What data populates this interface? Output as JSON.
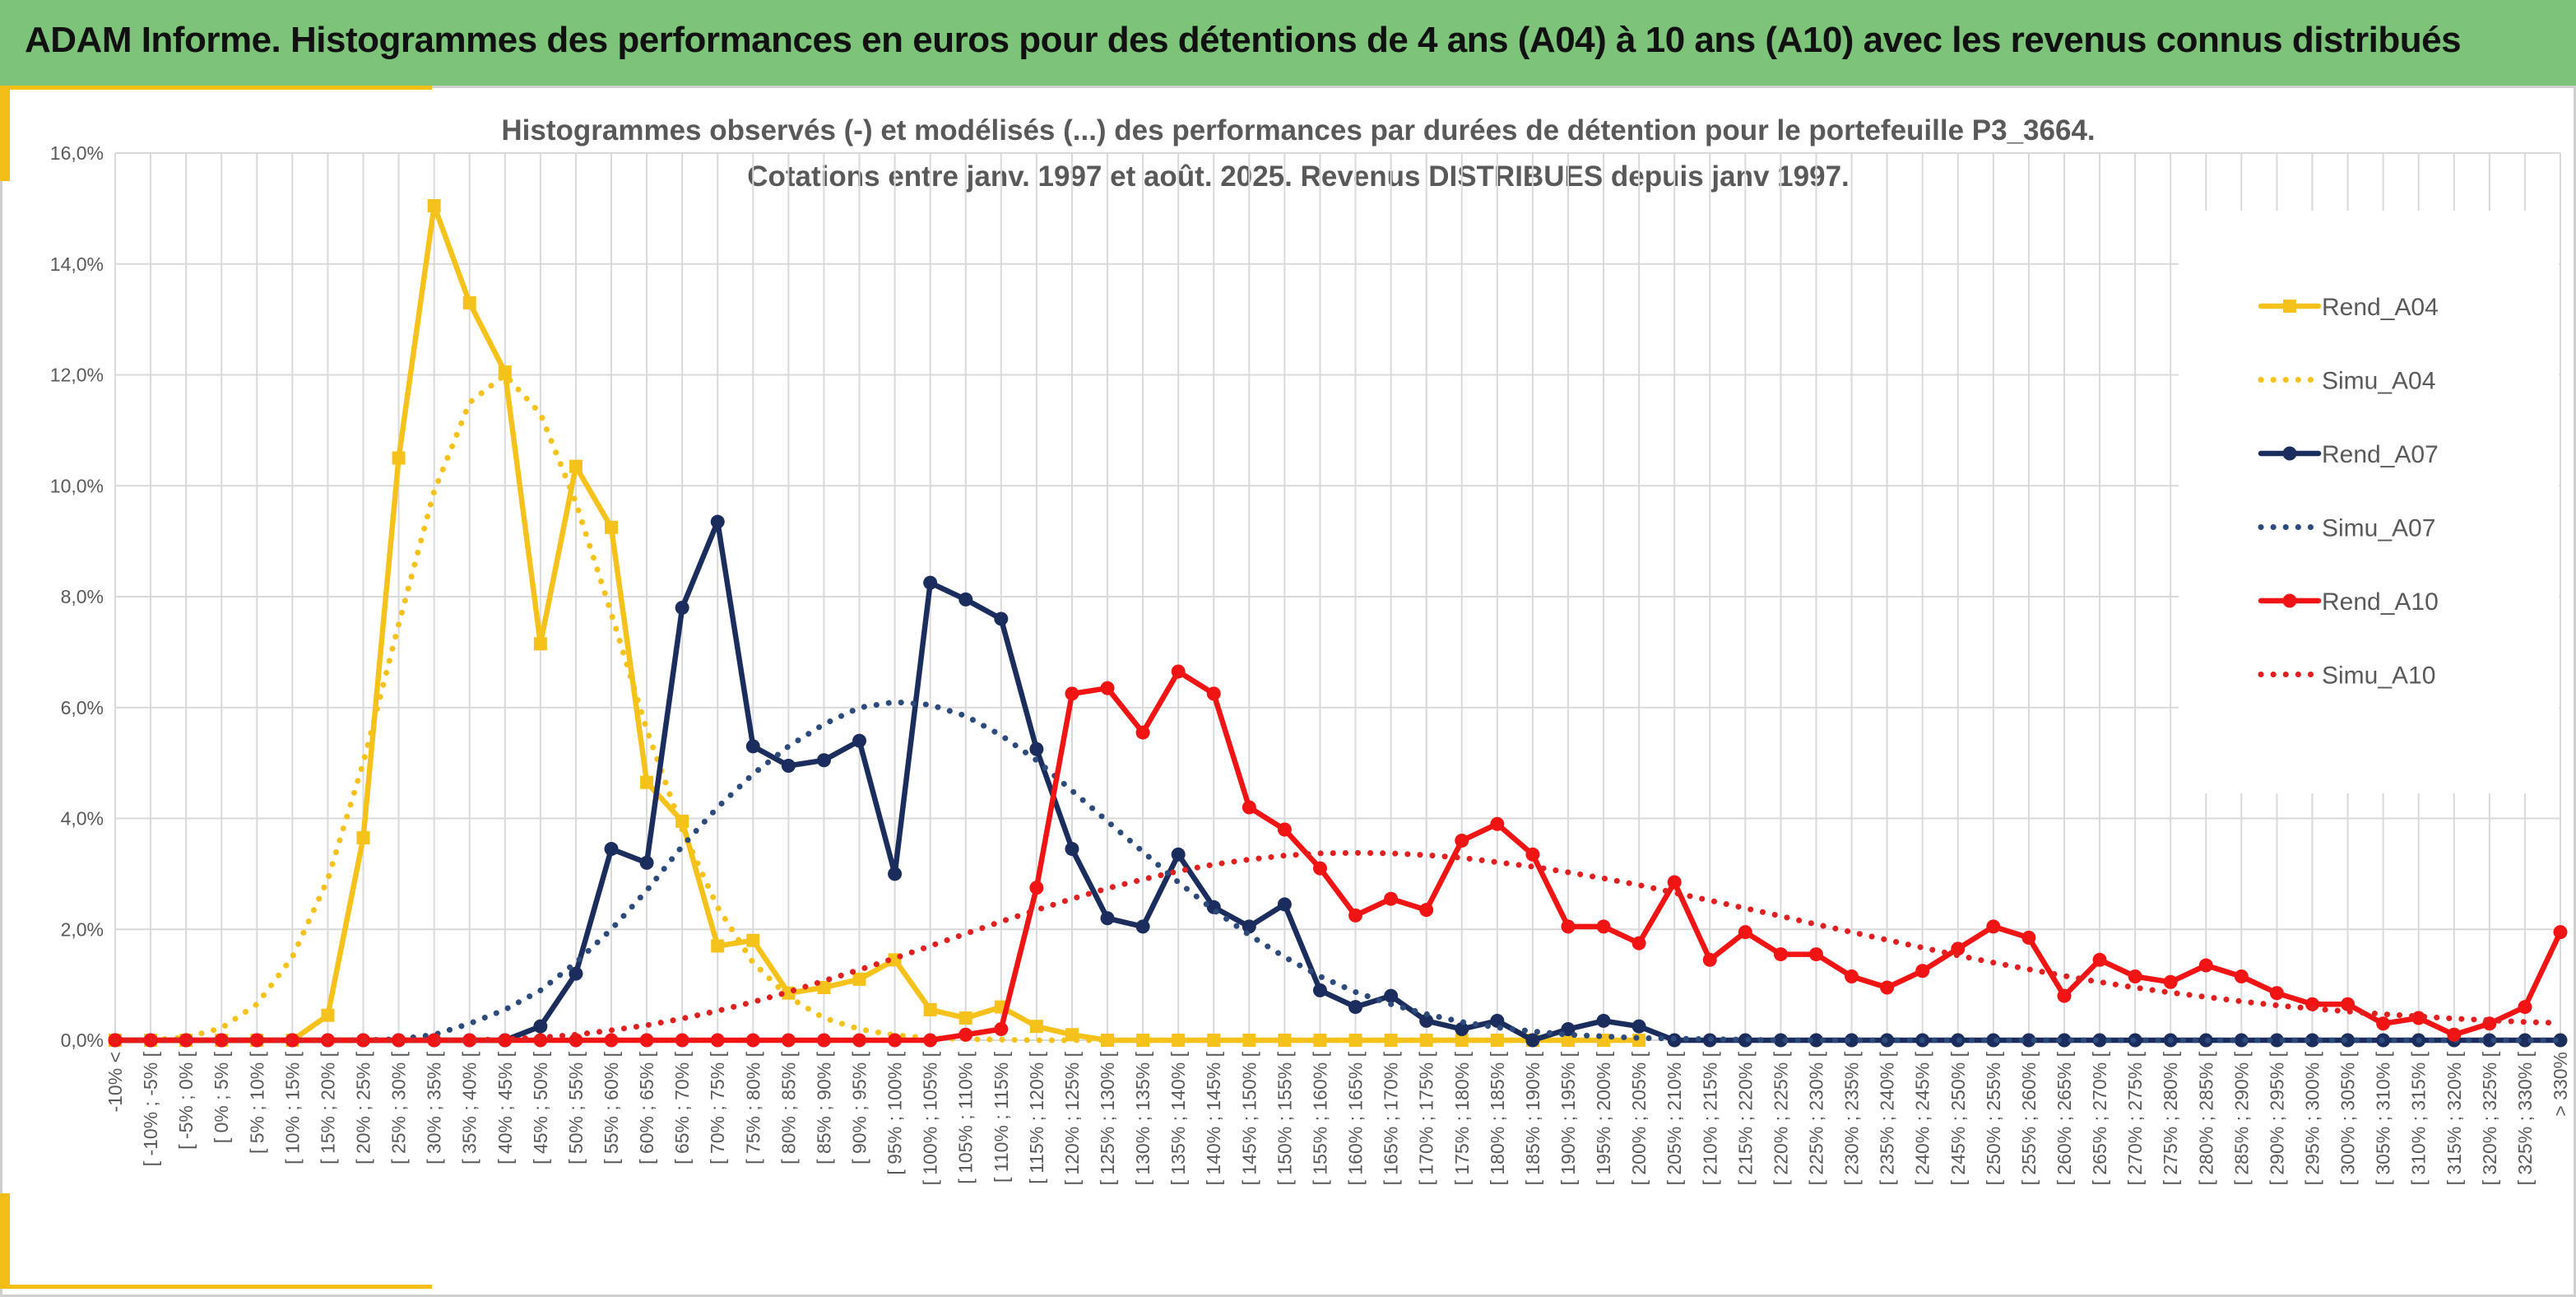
{
  "banner": {
    "title": "ADAM Informe. Histogrammes des performances en euros pour des détentions de 4 ans (A04) à 10 ans (A10) avec les revenus connus distribués"
  },
  "colors": {
    "banner_bg": "#7dc47a",
    "accent": "#f2bd14",
    "grid": "#d9d9d9",
    "A04": "#f5c21c",
    "A07": "#1a2d5c",
    "A07_simu": "#2c4a7a",
    "A10": "#f01414",
    "A10_simu": "#e02020"
  },
  "chart_data": {
    "type": "line",
    "title_line1": "Histogrammes observés (-) et modélisés (...) des performances par durées de détention pour le portefeuille P3_3664.",
    "title_line2": "Cotations entre janv. 1997 et août. 2025. Revenus DISTRIBUES depuis janv 1997.",
    "ylim": [
      0,
      16
    ],
    "yticks": [
      "0,0%",
      "2,0%",
      "4,0%",
      "6,0%",
      "8,0%",
      "10,0%",
      "12,0%",
      "14,0%",
      "16,0%"
    ],
    "grid": true,
    "legend_position": "right",
    "categories": [
      "-10% <",
      "[ -10% ; -5% [",
      "[ -5% ; 0% [",
      "[ 0% ; 5% [",
      "[ 5% ; 10% [",
      "[ 10% ; 15% [",
      "[ 15% ; 20% [",
      "[ 20% ; 25% [",
      "[ 25% ; 30% [",
      "[ 30% ; 35% [",
      "[ 35% ; 40% [",
      "[ 40% ; 45% [",
      "[ 45% ; 50% [",
      "[ 50% ; 55% [",
      "[ 55% ; 60% [",
      "[ 60% ; 65% [",
      "[ 65% ; 70% [",
      "[ 70% ; 75% [",
      "[ 75% ; 80% [",
      "[ 80% ; 85% [",
      "[ 85% ; 90% [",
      "[ 90% ; 95% [",
      "[ 95% ; 100% [",
      "[ 100% ; 105% [",
      "[ 105% ; 110% [",
      "[ 110% ; 115% [",
      "[ 115% ; 120% [",
      "[ 120% ; 125% [",
      "[ 125% ; 130% [",
      "[ 130% ; 135% [",
      "[ 135% ; 140% [",
      "[ 140% ; 145% [",
      "[ 145% ; 150% [",
      "[ 150% ; 155% [",
      "[ 155% ; 160% [",
      "[ 160% ; 165% [",
      "[ 165% ; 170% [",
      "[ 170% ; 175% [",
      "[ 175% ; 180% [",
      "[ 180% ; 185% [",
      "[ 185% ; 190% [",
      "[ 190% ; 195% [",
      "[ 195% ; 200% [",
      "[ 200% ; 205% [",
      "[ 205% ; 210% [",
      "[ 210% ; 215% [",
      "[ 215% ; 220% [",
      "[ 220% ; 225% [",
      "[ 225% ; 230% [",
      "[ 230% ; 235% [",
      "[ 235% ; 240% [",
      "[ 240% ; 245% [",
      "[ 245% ; 250% [",
      "[ 250% ; 255% [",
      "[ 255% ; 260% [",
      "[ 260% ; 265% [",
      "[ 265% ; 270% [",
      "[ 270% ; 275% [",
      "[ 275% ; 280% [",
      "[ 280% ; 285% [",
      "[ 285% ; 290% [",
      "[ 290% ; 295% [",
      "[ 295% ; 300% [",
      "[ 300% ; 305% [",
      "[ 305% ; 310% [",
      "[ 310% ; 315% [",
      "[ 315% ; 320% [",
      "[ 320% ; 325% [",
      "[ 325% ; 330% [",
      "> 330%"
    ],
    "series": [
      {
        "name": "Rend_A04",
        "style": "solid",
        "marker": "square",
        "color": "#f5c21c",
        "values": [
          0,
          0,
          0,
          0,
          0,
          0,
          0.45,
          3.65,
          10.5,
          15.05,
          13.3,
          12.05,
          7.15,
          10.35,
          9.25,
          4.65,
          3.95,
          1.7,
          1.8,
          0.85,
          0.95,
          1.1,
          1.45,
          0.55,
          0.4,
          0.6,
          0.25,
          0.1,
          0,
          0,
          0,
          0,
          0,
          0,
          0,
          0,
          0,
          0,
          0,
          0,
          0,
          0,
          0,
          0,
          null,
          null,
          null,
          null,
          null,
          null,
          null,
          null,
          null,
          null,
          null,
          null,
          null,
          null,
          null,
          null,
          null,
          null,
          null,
          null,
          null,
          null,
          null,
          null,
          null,
          null
        ]
      },
      {
        "name": "Simu_A04",
        "style": "dotted",
        "marker": "none",
        "color": "#f5c21c",
        "values": [
          0,
          0,
          0.05,
          0.22,
          0.65,
          1.5,
          2.9,
          5.0,
          7.5,
          9.9,
          11.5,
          12.0,
          11.3,
          9.7,
          7.7,
          5.6,
          3.8,
          2.4,
          1.4,
          0.78,
          0.4,
          0.2,
          0.09,
          0.04,
          0.02,
          0.01,
          0,
          0,
          0,
          0,
          0,
          0,
          0,
          0,
          0,
          0,
          0,
          0,
          0,
          0,
          0,
          0,
          0,
          0,
          null,
          null,
          null,
          null,
          null,
          null,
          null,
          null,
          null,
          null,
          null,
          null,
          null,
          null,
          null,
          null,
          null,
          null,
          null,
          null,
          null,
          null,
          null,
          null,
          null,
          null
        ]
      },
      {
        "name": "Rend_A07",
        "style": "solid",
        "marker": "circle",
        "color": "#1a2d5c",
        "values": [
          0,
          0,
          0,
          0,
          0,
          0,
          0,
          0,
          0,
          0,
          0,
          0,
          0.25,
          1.2,
          3.45,
          3.2,
          7.8,
          9.35,
          5.3,
          4.95,
          5.05,
          5.4,
          3.0,
          8.25,
          7.95,
          7.6,
          5.25,
          3.45,
          2.2,
          2.05,
          3.35,
          2.4,
          2.05,
          2.45,
          0.9,
          0.6,
          0.8,
          0.35,
          0.2,
          0.35,
          0,
          0.2,
          0.35,
          0.25,
          0,
          0,
          0,
          0,
          0,
          0,
          0,
          0,
          0,
          0,
          0,
          0,
          0,
          0,
          0,
          0,
          0,
          0,
          0,
          0,
          0,
          0,
          0,
          0,
          0,
          0
        ]
      },
      {
        "name": "Simu_A07",
        "style": "dotted",
        "marker": "none",
        "color": "#2c4a7a",
        "values": [
          0,
          0,
          0,
          0,
          0,
          0,
          0,
          0,
          0.02,
          0.1,
          0.3,
          0.55,
          0.9,
          1.4,
          2.0,
          2.7,
          3.5,
          4.2,
          4.8,
          5.3,
          5.7,
          6.0,
          6.1,
          6.05,
          5.85,
          5.5,
          5.05,
          4.5,
          3.95,
          3.4,
          2.85,
          2.35,
          1.9,
          1.5,
          1.15,
          0.87,
          0.65,
          0.47,
          0.33,
          0.23,
          0.16,
          0.1,
          0.07,
          0.04,
          0.03,
          0.02,
          0.01,
          0,
          0,
          0,
          0,
          0,
          0,
          0,
          0,
          0,
          0,
          0,
          0,
          0,
          0,
          0,
          0,
          0,
          0,
          0,
          0,
          0,
          0,
          0
        ]
      },
      {
        "name": "Rend_A10",
        "style": "solid",
        "marker": "circle",
        "color": "#f01414",
        "values": [
          0,
          0,
          0,
          0,
          0,
          0,
          0,
          0,
          0,
          0,
          0,
          0,
          0,
          0,
          0,
          0,
          0,
          0,
          0,
          0,
          0,
          0,
          0,
          0,
          0.1,
          0.2,
          2.75,
          6.25,
          6.35,
          5.55,
          6.65,
          6.25,
          4.2,
          3.8,
          3.1,
          2.25,
          2.55,
          2.35,
          3.6,
          3.9,
          3.35,
          2.05,
          2.05,
          1.75,
          2.85,
          1.45,
          1.95,
          1.55,
          1.55,
          1.15,
          0.95,
          1.25,
          1.65,
          2.05,
          1.85,
          0.8,
          1.45,
          1.15,
          1.05,
          1.35,
          1.15,
          0.85,
          0.65,
          0.65,
          0.3,
          0.4,
          0.1,
          0.3,
          0.6,
          1.95
        ]
      },
      {
        "name": "Simu_A10",
        "style": "dotted",
        "marker": "none",
        "color": "#e02020",
        "values": [
          0,
          0,
          0,
          0,
          0,
          0,
          0,
          0,
          0,
          0,
          0,
          0.02,
          0.05,
          0.1,
          0.18,
          0.27,
          0.39,
          0.53,
          0.69,
          0.87,
          1.07,
          1.27,
          1.48,
          1.7,
          1.92,
          2.14,
          2.35,
          2.55,
          2.74,
          2.9,
          3.05,
          3.17,
          3.26,
          3.33,
          3.37,
          3.38,
          3.37,
          3.34,
          3.29,
          3.21,
          3.13,
          3.03,
          2.92,
          2.8,
          2.66,
          2.52,
          2.38,
          2.24,
          2.09,
          1.95,
          1.81,
          1.67,
          1.53,
          1.4,
          1.28,
          1.16,
          1.05,
          0.95,
          0.86,
          0.78,
          0.7,
          0.63,
          0.57,
          0.52,
          0.47,
          0.43,
          0.39,
          0.36,
          0.33,
          0.31
        ]
      }
    ]
  }
}
